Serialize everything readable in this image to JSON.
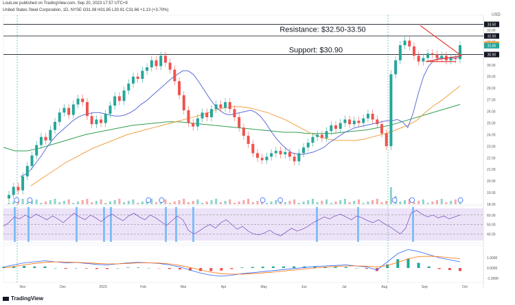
{
  "header": {
    "published": "LouiLow published on TradingView.com, Sep 20, 2023 17:57 UTC+8",
    "symbol_line": "United States Steel Corporation, 1D, NYSE  O31.08  H31.85  L30.91  C31.66  +1.13 (+3.70%)",
    "currency": "USD"
  },
  "footer": {
    "brand": "TradingView"
  },
  "annotations": {
    "resistance": "Resistance: $32.50-33.50",
    "support": "Support: $30.90"
  },
  "colors": {
    "up": "#26a69a",
    "down": "#ef5350",
    "ema_short": "#5b6cd6",
    "ema_mid": "#f0a040",
    "ema_long": "#2e9e4f",
    "rsi": "#7e57c2",
    "triangle": "#e53935",
    "marker_bar": "#64b5f6"
  },
  "chart_data": {
    "type": "candlestick",
    "x_ticks": [
      "Nov",
      "Dec",
      "2023",
      "Feb",
      "Mar",
      "Apr",
      "May",
      "Jun",
      "Jul",
      "Aug",
      "Sep",
      "Oct"
    ],
    "y_ticks": [
      18,
      19,
      20,
      21,
      22,
      23,
      24,
      25,
      26,
      27,
      28,
      29,
      30,
      31,
      32,
      33
    ],
    "ylim": [
      18,
      34.3
    ],
    "price_labels": [
      {
        "label": "33.50",
        "value": 33.5,
        "color": "#131722"
      },
      {
        "label": "32.50",
        "value": 32.5,
        "color": "#131722"
      },
      {
        "label": "31.80",
        "value": 31.8,
        "color": "#f0a040"
      },
      {
        "label": "31.66",
        "value": 31.66,
        "color": "#26a69a"
      },
      {
        "label": "30.90",
        "value": 30.9,
        "color": "#131722"
      }
    ],
    "levels": [
      33.5,
      32.5,
      30.9
    ],
    "series": [
      {
        "name": "USD",
        "values": [
          18.8,
          19.5,
          19.2,
          20.4,
          21.3,
          22.2,
          23.1,
          23.8,
          23.5,
          24.4,
          25.1,
          25.9,
          26.3,
          25.7,
          26.6,
          27.1,
          26.8,
          25.6,
          24.9,
          25.3,
          25.0,
          25.8,
          26.5,
          27.3,
          26.9,
          27.8,
          28.4,
          29.0,
          28.8,
          29.5,
          29.8,
          30.4,
          29.9,
          30.8,
          30.2,
          29.6,
          28.6,
          27.4,
          26.1,
          25.0,
          24.7,
          25.4,
          25.9,
          25.5,
          26.2,
          26.6,
          26.3,
          26.8,
          26.2,
          25.5,
          24.6,
          23.9,
          23.2,
          22.4,
          22.0,
          21.8,
          22.1,
          22.4,
          22.6,
          22.3,
          22.5,
          22.1,
          21.7,
          22.4,
          22.9,
          23.3,
          23.8,
          24.0,
          23.7,
          24.3,
          24.8,
          24.5,
          25.0,
          25.3,
          24.9,
          25.2,
          25.0,
          25.4,
          25.8,
          25.3,
          24.9,
          24.1,
          23.0,
          29.2,
          30.4,
          31.7,
          32.1,
          31.6,
          30.8,
          30.3,
          30.6,
          31.0,
          30.9,
          30.6,
          30.8,
          30.4,
          30.6,
          30.5,
          31.7
        ]
      },
      {
        "name": "",
        "values": [
          20.4,
          20.6,
          21.0,
          21.6,
          22.2,
          22.9,
          23.5,
          24.0,
          24.4,
          24.8,
          25.2,
          25.5,
          25.7,
          25.8,
          25.9,
          25.9,
          25.8,
          25.7,
          25.6,
          25.6,
          25.7,
          25.9,
          26.2,
          26.6,
          26.9,
          27.3,
          27.7,
          28.1,
          28.5,
          28.9,
          29.2,
          29.5,
          29.5,
          29.2,
          28.6,
          27.9,
          27.2,
          26.6,
          26.1,
          25.8,
          25.7,
          25.8,
          25.9,
          26.0,
          26.1,
          25.9,
          25.5,
          24.9,
          24.2,
          23.6,
          23.1,
          22.7,
          22.4,
          22.3,
          22.3,
          22.4,
          22.5,
          22.7,
          22.9,
          23.3,
          23.6,
          23.9,
          24.2,
          24.4,
          24.6,
          24.7,
          24.8,
          24.9,
          25.0,
          25.1,
          25.2,
          25.2,
          25.3,
          25.1,
          24.6,
          25.8,
          27.5,
          29.0,
          29.9,
          30.4,
          30.6,
          30.6,
          30.6,
          30.6,
          30.7
        ]
      },
      {
        "name": "",
        "values": [
          19.6,
          20.1,
          20.6,
          21.1,
          21.6,
          22.0,
          22.4,
          22.8,
          23.1,
          23.4,
          23.7,
          24.0,
          24.2,
          24.4,
          24.6,
          24.8,
          25.0,
          25.2,
          25.4,
          25.6,
          25.8,
          26.1,
          26.3,
          26.4,
          26.4,
          26.3,
          26.1,
          25.9,
          25.6,
          25.3,
          24.9,
          24.5,
          24.1,
          23.8,
          23.6,
          23.5,
          23.5,
          23.5,
          23.6,
          23.8,
          24.0,
          24.2,
          24.5,
          24.8,
          25.2,
          25.9,
          26.5,
          27.0,
          27.6,
          28.2
        ]
      },
      {
        "name": "",
        "values": [
          22.9,
          22.6,
          22.6,
          22.8,
          23.1,
          23.4,
          23.7,
          24.0,
          24.2,
          24.4,
          24.6,
          24.8,
          24.9,
          25.0,
          25.1,
          25.1,
          25.0,
          24.9,
          24.8,
          24.7,
          24.6,
          24.5,
          24.4,
          24.3,
          24.2,
          24.2,
          24.1,
          24.1,
          24.1,
          24.2,
          24.3,
          24.4,
          24.6,
          24.8,
          25.1,
          25.4,
          25.7,
          26.0,
          26.3,
          26.6
        ]
      }
    ],
    "markers_x_fraction": [
      0.03,
      0.06,
      0.33,
      0.36,
      0.59,
      0.63,
      0.89,
      0.93,
      1.04
    ],
    "rsi": {
      "levels": [
        60,
        50,
        40
      ],
      "ylim": [
        30,
        70
      ],
      "values": [
        48,
        52,
        58,
        56,
        60,
        57,
        61,
        58,
        55,
        59,
        56,
        52,
        57,
        62,
        58,
        55,
        60,
        57,
        53,
        58,
        61,
        57,
        54,
        59,
        62,
        58,
        55,
        60,
        57,
        53,
        49,
        54,
        59,
        55,
        44,
        40,
        43,
        47,
        50,
        46,
        52,
        55,
        50,
        45,
        48,
        43,
        40,
        39,
        41,
        44,
        40,
        38,
        42,
        46,
        43,
        45,
        48,
        52,
        55,
        58,
        56,
        59,
        61,
        58,
        55,
        59,
        57,
        54,
        52,
        55,
        51,
        48,
        44,
        40,
        46,
        62,
        65,
        61,
        58,
        60,
        57,
        59,
        56,
        58,
        60
      ]
    },
    "macd": {
      "ticks": [
        1,
        0,
        -1
      ],
      "ylim": [
        -1.4,
        2.2
      ],
      "macd": [
        0.1,
        0.3,
        0.5,
        0.6,
        0.7,
        0.6,
        0.5,
        0.55,
        0.45,
        0.35,
        0.3,
        0.4,
        0.5,
        0.55,
        0.5,
        0.45,
        0.3,
        0.1,
        -0.2,
        -0.5,
        -0.7,
        -0.8,
        -0.7,
        -0.55,
        -0.45,
        -0.35,
        -0.25,
        -0.15,
        -0.05,
        0.05,
        0.15,
        0.2,
        0.25,
        0.3,
        0.2,
        0.1,
        -0.2,
        0.6,
        1.4,
        1.8,
        1.6,
        1.3,
        1.0,
        0.8,
        0.6
      ],
      "signal": [
        0.0,
        0.15,
        0.3,
        0.45,
        0.55,
        0.6,
        0.58,
        0.55,
        0.5,
        0.45,
        0.4,
        0.4,
        0.45,
        0.5,
        0.5,
        0.48,
        0.4,
        0.25,
        0.05,
        -0.2,
        -0.4,
        -0.55,
        -0.6,
        -0.6,
        -0.55,
        -0.48,
        -0.4,
        -0.3,
        -0.2,
        -0.1,
        0.0,
        0.08,
        0.15,
        0.2,
        0.2,
        0.18,
        0.1,
        0.25,
        0.55,
        0.9,
        1.1,
        1.15,
        1.1,
        1.0,
        0.9
      ]
    }
  }
}
